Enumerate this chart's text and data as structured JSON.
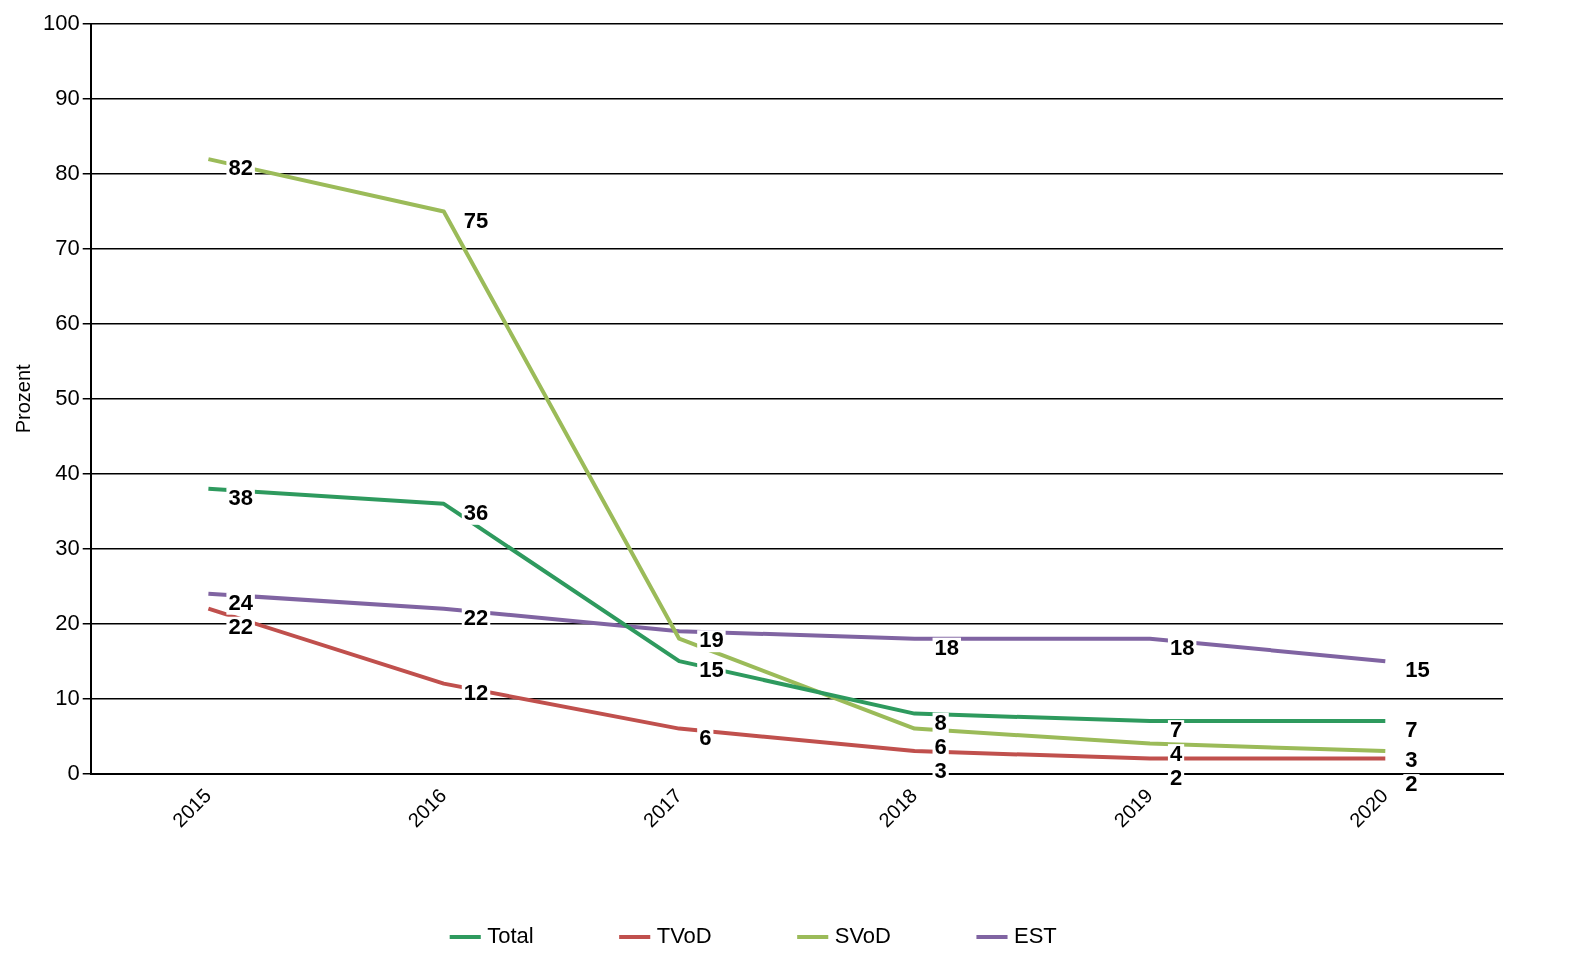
{
  "chart_data": {
    "type": "line",
    "ylabel": "Prozent",
    "categories": [
      "2015",
      "2016",
      "2017",
      "2018",
      "2019",
      "2020"
    ],
    "series": [
      {
        "name": "Total",
        "color": "#2e9a5e",
        "values": [
          38,
          36,
          15,
          8,
          7,
          7
        ],
        "value_labels": [
          "38",
          "36",
          "15",
          "8",
          "7",
          "7"
        ]
      },
      {
        "name": "TVoD",
        "color": "#c0504d",
        "values": [
          22,
          12,
          6,
          3,
          2,
          2
        ],
        "value_labels": [
          "22",
          "12",
          "6",
          "3",
          "2",
          "2"
        ]
      },
      {
        "name": "SVoD",
        "color": "#9bbb59",
        "values": [
          82,
          75,
          18,
          6,
          4,
          3
        ],
        "value_labels": [
          "82",
          "75",
          null,
          "6",
          "4",
          "3"
        ]
      },
      {
        "name": "EST",
        "color": "#8064a2",
        "values": [
          24,
          22,
          19,
          18,
          18,
          15
        ],
        "value_labels": [
          "24",
          "22",
          "19",
          "18",
          "18",
          "15"
        ]
      }
    ],
    "ylim": [
      0,
      100
    ],
    "yticks": [
      0,
      10,
      20,
      30,
      40,
      50,
      60,
      70,
      80,
      90,
      100
    ],
    "grid": "y",
    "legend": "bottom",
    "marker": "none",
    "line_style": "solid"
  }
}
